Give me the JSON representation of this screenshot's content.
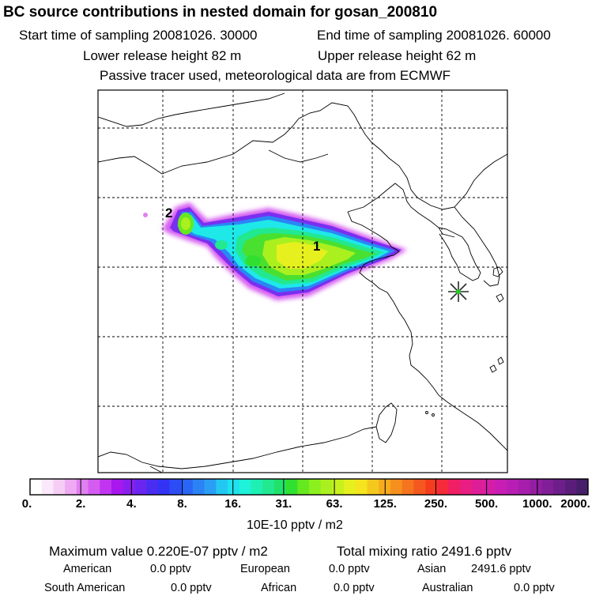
{
  "header": {
    "title": "BC  source contributions in nested domain for gosan_200810",
    "start_label": "Start time of sampling 20081026. 30000",
    "end_label": "End time of sampling 20081026. 60000",
    "lower_label": "Lower release height   82 m",
    "upper_label": "Upper release height   62 m",
    "note": "Passive tracer used, meteorological data are from ECMWF"
  },
  "map": {
    "markers": [
      {
        "label": "1",
        "type": "source-cluster"
      },
      {
        "label": "2",
        "type": "source-cluster"
      }
    ],
    "receptor": "gosan-station",
    "colors": {
      "coast": "#000000",
      "grid": "#000000",
      "receptor_star": "#2a2a2a",
      "receptor_center": "#22cc22"
    }
  },
  "legend": {
    "scale_labels": [
      "0.",
      "2.",
      "4.",
      "8.",
      "16.",
      "31.",
      "63.",
      "125.",
      "250.",
      "500.",
      "1000.",
      "2000."
    ],
    "units": "10E-10 pptv / m2",
    "colors": [
      "#ffffff",
      "#fbe8fb",
      "#f5cdf5",
      "#eeaaf2",
      "#e080f0",
      "#d45cf0",
      "#c235f0",
      "#a817ee",
      "#8a1ff0",
      "#6a26f0",
      "#4a2cf2",
      "#3333f5",
      "#2c4cf5",
      "#2a66f5",
      "#2a82f5",
      "#2a9ef5",
      "#22c8f2",
      "#1ee2ee",
      "#1ef2d8",
      "#1ef0b4",
      "#22e890",
      "#20e26a",
      "#30e030",
      "#66e81e",
      "#8cf01e",
      "#aaf01e",
      "#c8f01e",
      "#e6f01e",
      "#f5e41e",
      "#f5c81e",
      "#f5ac1e",
      "#f5901e",
      "#f5741e",
      "#f5581e",
      "#f53c1e",
      "#f52a3a",
      "#f01e64",
      "#e81e82",
      "#de1e96",
      "#d41ea8",
      "#c81eb4",
      "#b81eb4",
      "#a61eac",
      "#941ea2",
      "#821e98",
      "#6e1e8a",
      "#5a1e7a",
      "#461e6a"
    ]
  },
  "stats": {
    "max_label": "Maximum value  0.220E-07 pptv / m2",
    "total_label": "Total mixing ratio     2491.6 pptv",
    "regions": [
      {
        "name": "American",
        "value": "0.0 pptv"
      },
      {
        "name": "European",
        "value": "0.0 pptv"
      },
      {
        "name": "Asian",
        "value": "2491.6 pptv"
      },
      {
        "name": "South American",
        "value": "0.0 pptv"
      },
      {
        "name": "African",
        "value": "0.0 pptv"
      },
      {
        "name": "Australian",
        "value": "0.0 pptv"
      }
    ]
  }
}
